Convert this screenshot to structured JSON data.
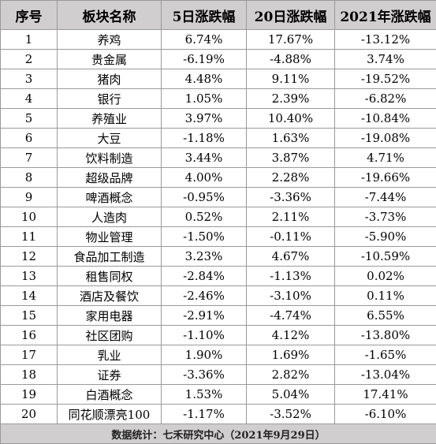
{
  "headers": [
    "序号",
    "板块名称",
    "5日涨跌幅",
    "20日涨跌幅",
    "2021年涨跌幅"
  ],
  "rows": [
    [
      "1",
      "养鸡",
      "6.74%",
      "17.67%",
      "-13.12%"
    ],
    [
      "2",
      "贵金属",
      "-6.19%",
      "-4.88%",
      "3.74%"
    ],
    [
      "3",
      "猪肉",
      "4.48%",
      "9.11%",
      "-19.52%"
    ],
    [
      "4",
      "银行",
      "1.05%",
      "2.39%",
      "-6.82%"
    ],
    [
      "5",
      "养殖业",
      "3.97%",
      "10.40%",
      "-10.84%"
    ],
    [
      "6",
      "大豆",
      "-1.18%",
      "1.63%",
      "-19.08%"
    ],
    [
      "7",
      "饮料制造",
      "3.44%",
      "3.87%",
      "4.71%"
    ],
    [
      "8",
      "超级品牌",
      "4.00%",
      "2.28%",
      "-19.66%"
    ],
    [
      "9",
      "啤酒概念",
      "-0.95%",
      "-3.36%",
      "-7.44%"
    ],
    [
      "10",
      "人造肉",
      "0.52%",
      "2.11%",
      "-3.73%"
    ],
    [
      "11",
      "物业管理",
      "-1.50%",
      "-0.11%",
      "-5.90%"
    ],
    [
      "12",
      "食品加工制造",
      "3.23%",
      "4.67%",
      "-10.59%"
    ],
    [
      "13",
      "租售同权",
      "-2.84%",
      "-1.13%",
      "0.02%"
    ],
    [
      "14",
      "酒店及餐饮",
      "-2.46%",
      "-3.10%",
      "0.11%"
    ],
    [
      "15",
      "家用电器",
      "-2.91%",
      "-4.74%",
      "6.55%"
    ],
    [
      "16",
      "社区团购",
      "-1.10%",
      "4.12%",
      "-13.80%"
    ],
    [
      "17",
      "乳业",
      "1.90%",
      "1.69%",
      "-1.65%"
    ],
    [
      "18",
      "证券",
      "-3.36%",
      "2.82%",
      "-13.04%"
    ],
    [
      "19",
      "白酒概念",
      "1.53%",
      "5.04%",
      "17.41%"
    ],
    [
      "20",
      "同花顺漂亮100",
      "-1.17%",
      "-3.52%",
      "-6.10%"
    ]
  ],
  "footer": "数据统计：七禾研究中心（2021年9月29日）"
}
